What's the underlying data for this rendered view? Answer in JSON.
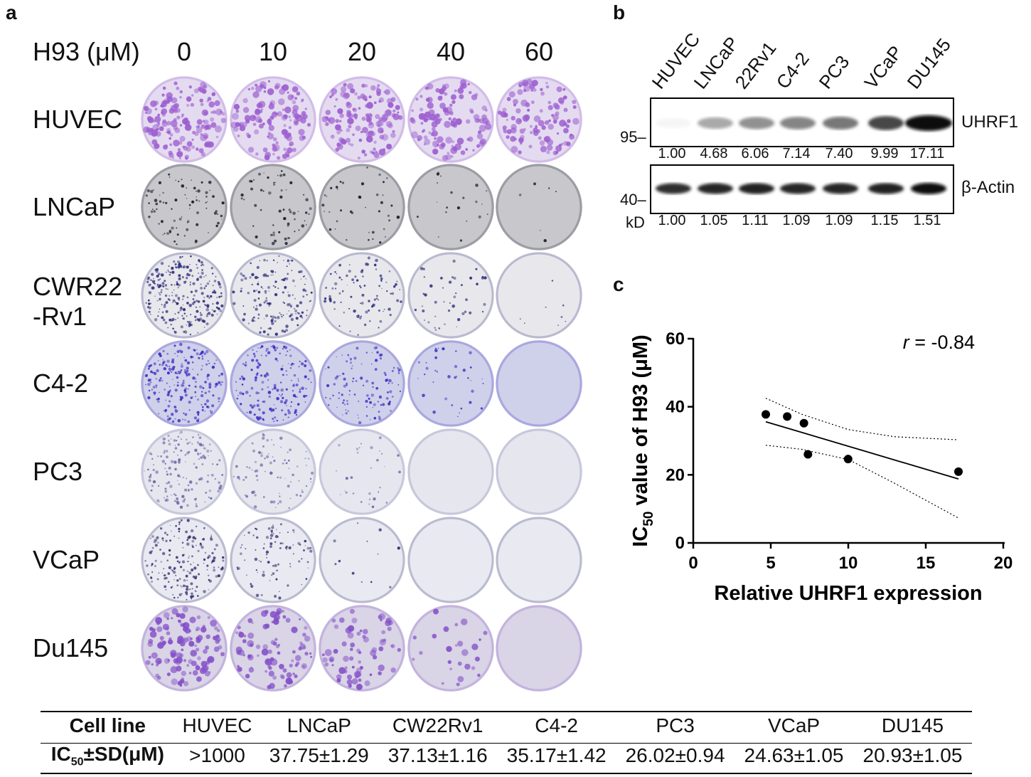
{
  "panel_a": {
    "letter": "a",
    "dose_label": "H93 (μM)",
    "doses": [
      "0",
      "10",
      "20",
      "40",
      "60"
    ],
    "rows": [
      {
        "label": "HUVEC",
        "label2": "",
        "base": "#e4dbf0",
        "colony": "#9c5ed0",
        "density": [
          150,
          130,
          130,
          120,
          110
        ]
      },
      {
        "label": "LNCaP",
        "label2": "",
        "base": "#c7c7cc",
        "colony": "#1a1a2a",
        "density": [
          80,
          60,
          40,
          20,
          6
        ]
      },
      {
        "label": "CWR22",
        "label2": "-Rv1",
        "base": "#e8e8ec",
        "colony": "#2a2a7a",
        "density": [
          260,
          160,
          90,
          45,
          8
        ]
      },
      {
        "label": "C4-2",
        "label2": "",
        "base": "#cfd0ea",
        "colony": "#3a2bc0",
        "density": [
          220,
          170,
          110,
          35,
          0
        ]
      },
      {
        "label": "PC3",
        "label2": "",
        "base": "#e6e6ee",
        "colony": "#6a6aa8",
        "density": [
          150,
          80,
          30,
          0,
          0
        ]
      },
      {
        "label": "VCaP",
        "label2": "",
        "base": "#e9e9f1",
        "colony": "#2e2e6e",
        "density": [
          180,
          90,
          12,
          0,
          0
        ]
      },
      {
        "label": "Du145",
        "label2": "",
        "base": "#d9d4e6",
        "colony": "#8450c8",
        "density": [
          120,
          90,
          70,
          25,
          0
        ]
      }
    ]
  },
  "panel_b": {
    "letter": "b",
    "lanes": [
      "HUVEC",
      "LNCaP",
      "22Rv1",
      "C4-2",
      "PC3",
      "VCaP",
      "DU145"
    ],
    "uhrf1": {
      "protein": "UHRF1",
      "mw": "95",
      "quant": [
        "1.00",
        "4.68",
        "6.06",
        "7.14",
        "7.40",
        "9.99",
        "17.11"
      ],
      "intensity": [
        0.04,
        0.35,
        0.45,
        0.5,
        0.55,
        0.75,
        1.0
      ]
    },
    "actin": {
      "protein": "β-Actin",
      "mw": "40",
      "quant": [
        "1.00",
        "1.05",
        "1.11",
        "1.09",
        "1.09",
        "1.15",
        "1.51"
      ],
      "intensity": [
        0.85,
        0.88,
        0.9,
        0.88,
        0.88,
        0.9,
        1.0
      ]
    },
    "kd_label": "kD"
  },
  "panel_c": {
    "letter": "c"
  },
  "chart_data": {
    "type": "scatter",
    "title": "",
    "xlabel": "Relative UHRF1 expression",
    "ylabel": "IC50 value of H93 (μM)",
    "ylabel_main": "IC",
    "ylabel_sub": "50",
    "ylabel_rest": " value of H93 (μM)",
    "xlim": [
      0,
      20
    ],
    "ylim": [
      0,
      60
    ],
    "xticks": [
      "0",
      "5",
      "10",
      "15",
      "20"
    ],
    "yticks": [
      "0",
      "20",
      "40",
      "60"
    ],
    "points": [
      {
        "x": 4.68,
        "y": 37.75
      },
      {
        "x": 6.06,
        "y": 37.13
      },
      {
        "x": 7.14,
        "y": 35.17
      },
      {
        "x": 7.4,
        "y": 26.02
      },
      {
        "x": 9.99,
        "y": 24.63
      },
      {
        "x": 17.11,
        "y": 20.93
      }
    ],
    "fit_line": [
      {
        "x": 4.68,
        "y": 35.6
      },
      {
        "x": 17.11,
        "y": 18.8
      }
    ],
    "ci_upper": [
      {
        "x": 4.68,
        "y": 42.5
      },
      {
        "x": 7,
        "y": 37.8
      },
      {
        "x": 10,
        "y": 33.3
      },
      {
        "x": 13,
        "y": 31.2
      },
      {
        "x": 17.11,
        "y": 30.3
      }
    ],
    "ci_lower": [
      {
        "x": 4.68,
        "y": 28.7
      },
      {
        "x": 7,
        "y": 27.5
      },
      {
        "x": 10,
        "y": 24.5
      },
      {
        "x": 13,
        "y": 17.5
      },
      {
        "x": 17.11,
        "y": 7.3
      }
    ],
    "annotation_r": "r",
    "annotation_value": " = -0.84"
  },
  "table": {
    "header_label": "Cell line",
    "cell_lines": [
      "HUVEC",
      "LNCaP",
      "CW22Rv1",
      "C4-2",
      "PC3",
      "VCaP",
      "DU145"
    ],
    "row_label_main": "IC",
    "row_label_sub": "50",
    "row_label_rest": "±SD(μM)",
    "values": [
      ">1000",
      "37.75±1.29",
      "37.13±1.16",
      "35.17±1.42",
      "26.02±0.94",
      "24.63±1.05",
      "20.93±1.05"
    ]
  }
}
